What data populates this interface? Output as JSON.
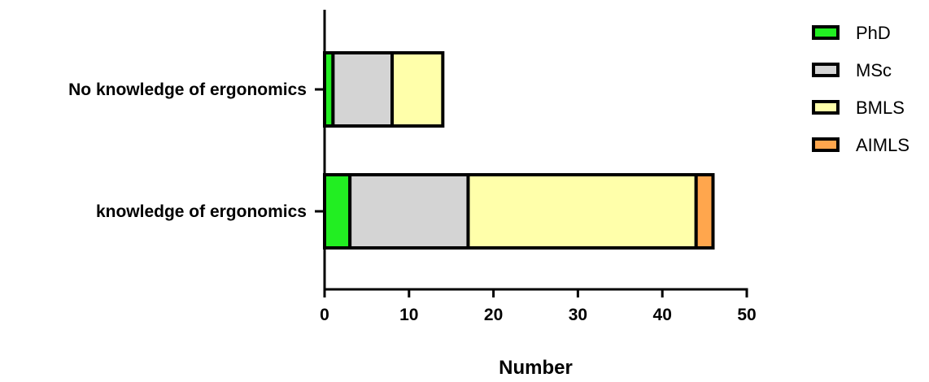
{
  "chart_data": {
    "type": "bar",
    "orientation": "horizontal",
    "stacked": true,
    "categories": [
      "No knowledge of ergonomics",
      "knowledge of ergonomics"
    ],
    "series": [
      {
        "name": "PhD",
        "values": [
          1,
          3
        ],
        "color": "#22ee22"
      },
      {
        "name": "MSc",
        "values": [
          7,
          14
        ],
        "color": "#d4d4d4"
      },
      {
        "name": "BMLS",
        "values": [
          6,
          27
        ],
        "color": "#ffffaa"
      },
      {
        "name": "AIMLS",
        "values": [
          0,
          2
        ],
        "color": "#ffa64d"
      }
    ],
    "x_ticks": [
      0,
      10,
      20,
      30,
      40,
      50
    ],
    "xlim": [
      0,
      50
    ],
    "xlabel": "Number",
    "ylabel": "",
    "title": "",
    "grid": false,
    "legend_position": "top-right"
  }
}
